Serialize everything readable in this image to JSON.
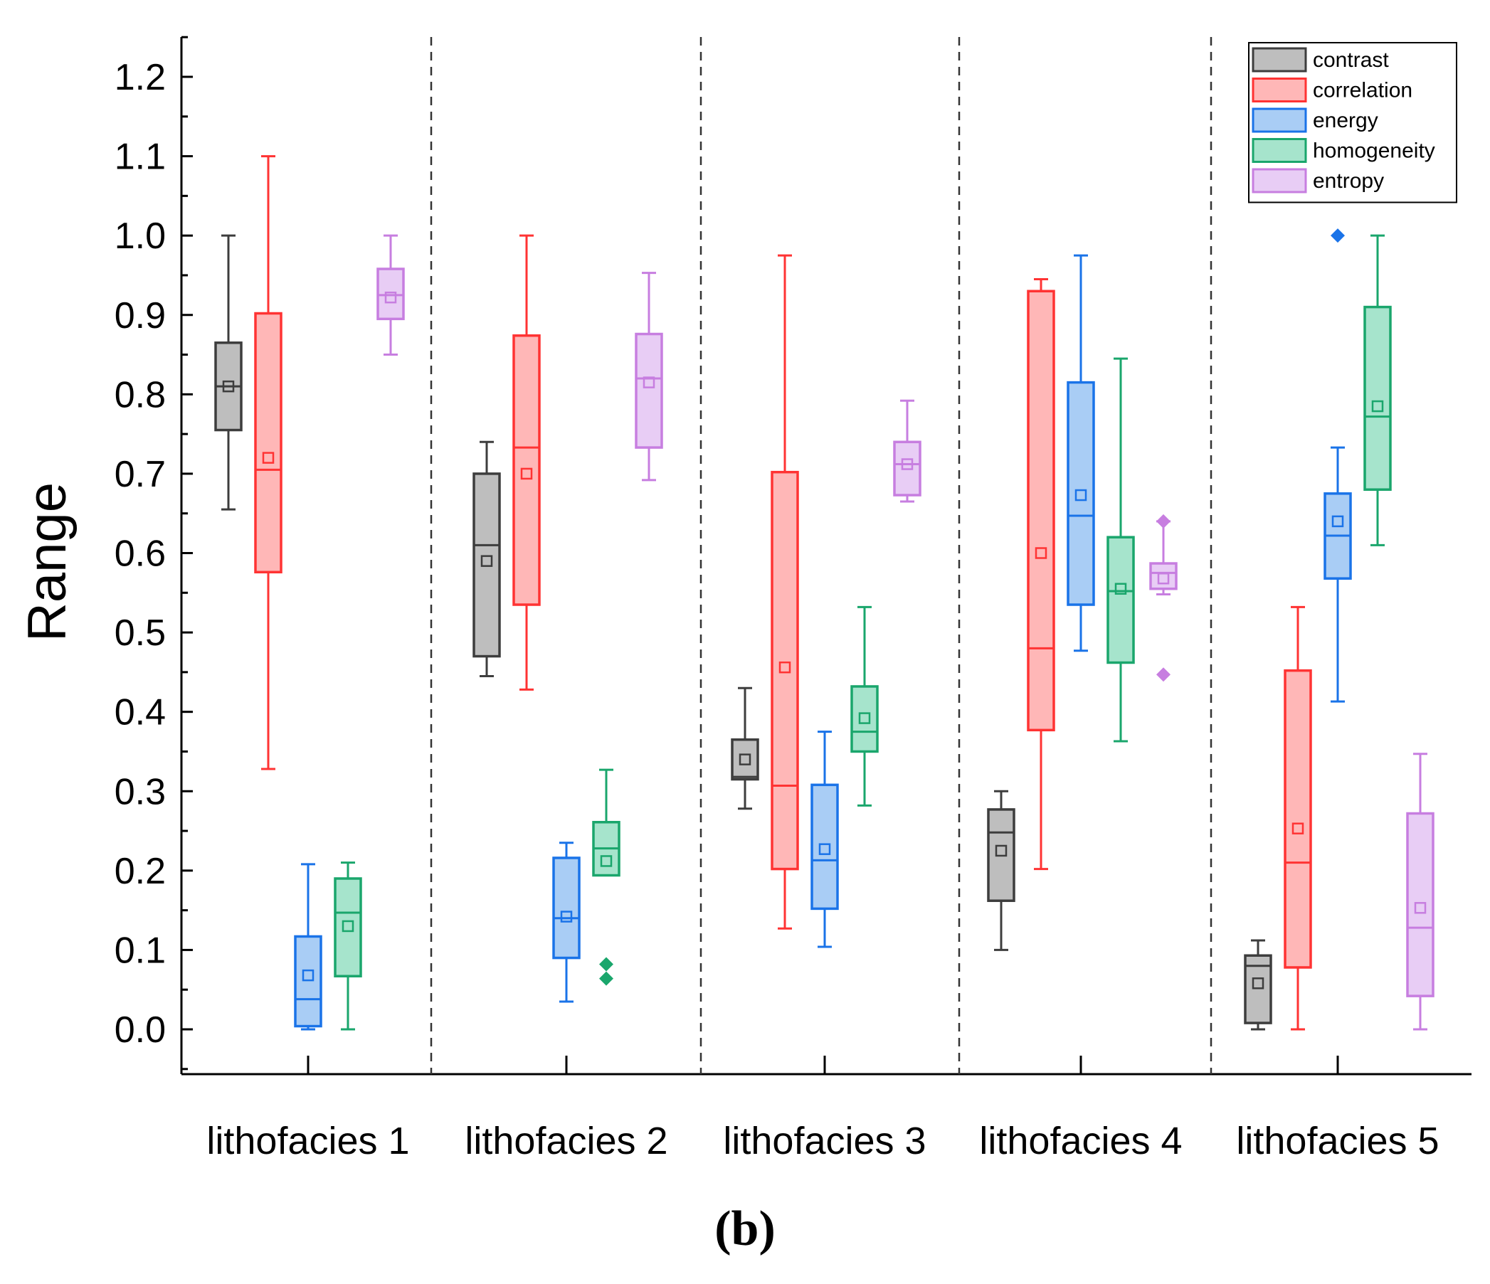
{
  "chart_data": {
    "type": "box",
    "ylabel": "Range",
    "xlabel": "",
    "ylim": [
      -0.05,
      1.25
    ],
    "yticks": [
      0.0,
      0.1,
      0.2,
      0.3,
      0.4,
      0.5,
      0.6,
      0.7,
      0.8,
      0.9,
      1.0,
      1.1,
      1.2
    ],
    "ytick_labels": [
      "0.0",
      "0.1",
      "0.2",
      "0.3",
      "0.4",
      "0.5",
      "0.6",
      "0.7",
      "0.8",
      "0.9",
      "1.0",
      "1.1",
      "1.2"
    ],
    "categories": [
      "lithofacies 1",
      "lithofacies 2",
      "lithofacies 3",
      "lithofacies 4",
      "lithofacies 5"
    ],
    "legend_position": "top-right",
    "caption": "(b)",
    "series": [
      {
        "name": "contrast",
        "color": "#3d3d3d",
        "fill": "#bebebe",
        "stats": [
          {
            "min": 0.655,
            "q1": 0.755,
            "median": 0.81,
            "q3": 0.865,
            "max": 1.0,
            "mean": 0.81,
            "outliers": []
          },
          {
            "min": 0.445,
            "q1": 0.47,
            "median": 0.61,
            "q3": 0.7,
            "max": 0.74,
            "mean": 0.59,
            "outliers": []
          },
          {
            "min": 0.278,
            "q1": 0.315,
            "median": 0.318,
            "q3": 0.365,
            "max": 0.43,
            "mean": 0.34,
            "outliers": []
          },
          {
            "min": 0.1,
            "q1": 0.162,
            "median": 0.248,
            "q3": 0.277,
            "max": 0.3,
            "mean": 0.225,
            "outliers": []
          },
          {
            "min": 0.0,
            "q1": 0.008,
            "median": 0.08,
            "q3": 0.093,
            "max": 0.112,
            "mean": 0.058,
            "outliers": []
          }
        ]
      },
      {
        "name": "correlation",
        "color": "#ff3333",
        "fill": "#ffb7b7",
        "stats": [
          {
            "min": 0.328,
            "q1": 0.576,
            "median": 0.705,
            "q3": 0.902,
            "max": 1.1,
            "mean": 0.72,
            "outliers": []
          },
          {
            "min": 0.428,
            "q1": 0.535,
            "median": 0.733,
            "q3": 0.874,
            "max": 1.0,
            "mean": 0.7,
            "outliers": []
          },
          {
            "min": 0.127,
            "q1": 0.202,
            "median": 0.307,
            "q3": 0.702,
            "max": 0.975,
            "mean": 0.456,
            "outliers": []
          },
          {
            "min": 0.202,
            "q1": 0.377,
            "median": 0.48,
            "q3": 0.93,
            "max": 0.945,
            "mean": 0.6,
            "outliers": []
          },
          {
            "min": 0.0,
            "q1": 0.078,
            "median": 0.21,
            "q3": 0.452,
            "max": 0.532,
            "mean": 0.253,
            "outliers": []
          }
        ]
      },
      {
        "name": "energy",
        "color": "#1a73e8",
        "fill": "#a9cdf5",
        "stats": [
          {
            "min": 0.0,
            "q1": 0.004,
            "median": 0.038,
            "q3": 0.117,
            "max": 0.208,
            "mean": 0.068,
            "outliers": []
          },
          {
            "min": 0.035,
            "q1": 0.09,
            "median": 0.14,
            "q3": 0.216,
            "max": 0.235,
            "mean": 0.142,
            "outliers": []
          },
          {
            "min": 0.104,
            "q1": 0.152,
            "median": 0.213,
            "q3": 0.308,
            "max": 0.375,
            "mean": 0.227,
            "outliers": []
          },
          {
            "min": 0.477,
            "q1": 0.535,
            "median": 0.647,
            "q3": 0.815,
            "max": 0.975,
            "mean": 0.673,
            "outliers": []
          },
          {
            "min": 0.413,
            "q1": 0.568,
            "median": 0.622,
            "q3": 0.675,
            "max": 0.733,
            "mean": 0.64,
            "outliers": [
              1.0
            ]
          }
        ]
      },
      {
        "name": "homogeneity",
        "color": "#1aa66c",
        "fill": "#a6e4cc",
        "stats": [
          {
            "min": 0.0,
            "q1": 0.067,
            "median": 0.147,
            "q3": 0.19,
            "max": 0.21,
            "mean": 0.13,
            "outliers": []
          },
          {
            "min": 0.194,
            "q1": 0.194,
            "median": 0.228,
            "q3": 0.261,
            "max": 0.327,
            "mean": 0.212,
            "outliers": [
              0.082,
              0.064
            ]
          },
          {
            "min": 0.282,
            "q1": 0.35,
            "median": 0.375,
            "q3": 0.432,
            "max": 0.532,
            "mean": 0.392,
            "outliers": []
          },
          {
            "min": 0.363,
            "q1": 0.462,
            "median": 0.552,
            "q3": 0.62,
            "max": 0.845,
            "mean": 0.555,
            "outliers": []
          },
          {
            "min": 0.61,
            "q1": 0.68,
            "median": 0.772,
            "q3": 0.91,
            "max": 1.0,
            "mean": 0.785,
            "outliers": []
          }
        ]
      },
      {
        "name": "entropy",
        "color": "#c77ee0",
        "fill": "#e8cdf5",
        "stats": [
          {
            "min": 0.85,
            "q1": 0.895,
            "median": 0.925,
            "q3": 0.958,
            "max": 1.0,
            "mean": 0.922,
            "outliers": []
          },
          {
            "min": 0.692,
            "q1": 0.733,
            "median": 0.82,
            "q3": 0.876,
            "max": 0.953,
            "mean": 0.815,
            "outliers": []
          },
          {
            "min": 0.665,
            "q1": 0.673,
            "median": 0.712,
            "q3": 0.74,
            "max": 0.792,
            "mean": 0.712,
            "outliers": []
          },
          {
            "min": 0.548,
            "q1": 0.555,
            "median": 0.575,
            "q3": 0.587,
            "max": 0.64,
            "mean": 0.568,
            "outliers": [
              0.64,
              0.447
            ]
          },
          {
            "min": 0.0,
            "q1": 0.042,
            "median": 0.128,
            "q3": 0.272,
            "max": 0.347,
            "mean": 0.153,
            "outliers": []
          }
        ]
      }
    ]
  }
}
